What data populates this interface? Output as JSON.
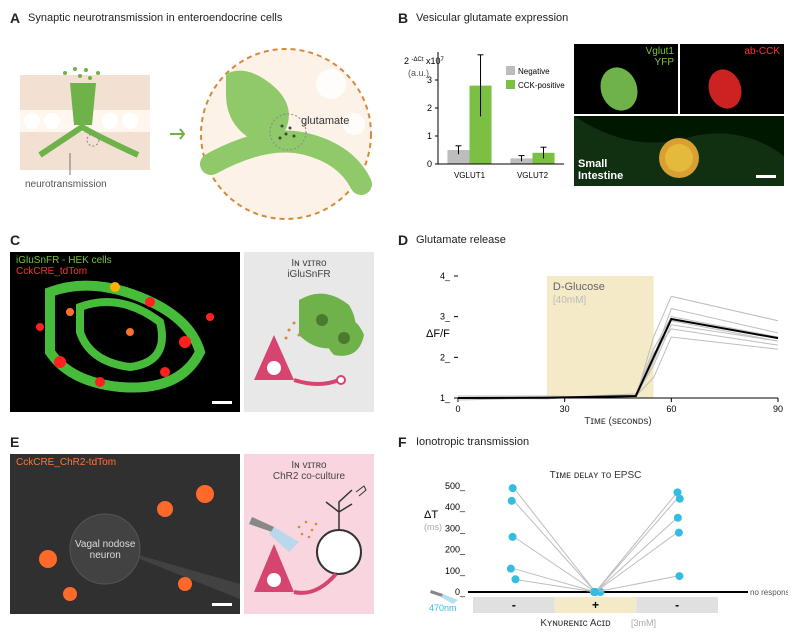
{
  "panelA": {
    "label": "A",
    "title": "Synaptic neurotransmission in enteroendocrine cells",
    "caption_neurotransmission": "neurotransmission",
    "caption_glutamate": "glutamate"
  },
  "panelB": {
    "label": "B",
    "title": "Vesicular glutamate expression",
    "chart": {
      "type": "bar",
      "categories": [
        "VGLUT1",
        "VGLUT2"
      ],
      "series": [
        {
          "name": "Negative",
          "color": "#bdbdbd",
          "values": [
            0.5,
            0.2
          ],
          "errors": [
            0.15,
            0.1
          ]
        },
        {
          "name": "CCK-positive",
          "color": "#7bc043",
          "values": [
            2.8,
            0.4
          ],
          "errors": [
            1.1,
            0.2
          ]
        }
      ],
      "ylabel_html": "2 <sup>-ΔCt</sup> x10<sup>7</sup>",
      "yunits": "(a.u.)",
      "ylim": [
        0,
        3
      ],
      "ytick_step": 1,
      "bar_width": 0.35,
      "label_fontsize": 9,
      "background_color": "#ffffff"
    },
    "img1_label": "Vglut1\nYFP",
    "img1_label_color": "#7bc043",
    "img2_label": "ab-CCK",
    "img2_label_color": "#ff3333",
    "img3_label": "Small\nIntestine",
    "img3_label_color": "#ffffff"
  },
  "panelC": {
    "label": "C",
    "img_top_label1": "iGluSnFR - HEK cells",
    "img_top_label1_color": "#7bc043",
    "img_top_label2": "CckCRE_tdTom",
    "img_top_label2_color": "#ff3333",
    "diagram_title": "Iɴ ᴠɪᴛʀᴏ",
    "diagram_subtitle": "iGluSnFR"
  },
  "panelD": {
    "label": "D",
    "title": "Glutamate release",
    "chart": {
      "type": "line",
      "xlabel": "Tɪᴍᴇ (sᴇᴄᴏɴᴅs)",
      "ylabel": "ΔF/F",
      "xlim": [
        0,
        90
      ],
      "xtick_step": 30,
      "ylim": [
        1,
        4
      ],
      "ytick_step": 1,
      "stimulus_label": "D-Glucose",
      "stimulus_conc": "[40mM]",
      "stimulus_start": 25,
      "stimulus_end": 55,
      "stimulus_color": "#f5eac8",
      "trace_color": "#bdbdbd",
      "mean_color": "#000000",
      "n_traces": 7,
      "traces": [
        [
          [
            0,
            1.0
          ],
          [
            25,
            1.0
          ],
          [
            50,
            1.05
          ],
          [
            55,
            1.8
          ],
          [
            60,
            2.8
          ],
          [
            90,
            2.4
          ]
        ],
        [
          [
            0,
            1.0
          ],
          [
            25,
            1.0
          ],
          [
            50,
            1.1
          ],
          [
            55,
            2.0
          ],
          [
            60,
            3.2
          ],
          [
            90,
            2.6
          ]
        ],
        [
          [
            0,
            1.05
          ],
          [
            25,
            1.05
          ],
          [
            50,
            1.0
          ],
          [
            55,
            2.5
          ],
          [
            60,
            3.5
          ],
          [
            90,
            2.9
          ]
        ],
        [
          [
            0,
            0.95
          ],
          [
            25,
            1.0
          ],
          [
            50,
            1.05
          ],
          [
            55,
            1.5
          ],
          [
            60,
            2.5
          ],
          [
            90,
            2.2
          ]
        ],
        [
          [
            0,
            1.0
          ],
          [
            25,
            0.98
          ],
          [
            50,
            1.1
          ],
          [
            55,
            2.2
          ],
          [
            60,
            3.0
          ],
          [
            90,
            2.5
          ]
        ],
        [
          [
            0,
            1.0
          ],
          [
            25,
            1.0
          ],
          [
            50,
            1.0
          ],
          [
            55,
            1.9
          ],
          [
            60,
            2.9
          ],
          [
            90,
            2.4
          ]
        ],
        [
          [
            0,
            1.0
          ],
          [
            25,
            1.02
          ],
          [
            50,
            1.05
          ],
          [
            55,
            2.1
          ],
          [
            60,
            2.7
          ],
          [
            90,
            2.3
          ]
        ]
      ],
      "label_fontsize": 10
    }
  },
  "panelE": {
    "label": "E",
    "img_top_label": "CckCRE_ChR2-tdTom",
    "img_top_label_color": "#ff7733",
    "img_center_label": "Vagal nodose\nneuron",
    "diagram_title": "Iɴ ᴠɪᴛʀᴏ",
    "diagram_subtitle": "ChR2 co-culture"
  },
  "panelF": {
    "label": "F",
    "title": "Ionotropic transmission",
    "chart": {
      "type": "scatter-paired",
      "ylabel": "ΔT",
      "yunits": "(ms)",
      "ylim": [
        0,
        500
      ],
      "ytick_step": 100,
      "title_right": "Tɪᴍᴇ ᴅᴇʟᴀʏ ᴛᴏ EPSC",
      "conditions": [
        "-",
        "+",
        "-"
      ],
      "x_positions": [
        0,
        1,
        2
      ],
      "points": [
        {
          "pre": 430,
          "during": 0,
          "post": 470
        },
        {
          "pre": 490,
          "during": 0,
          "post": 440
        },
        {
          "pre": 260,
          "during": 0,
          "post": 350
        },
        {
          "pre": 110,
          "during": 0,
          "post": 280
        },
        {
          "pre": 60,
          "during": 0,
          "post": 75
        }
      ],
      "marker_color": "#33bde0",
      "line_color": "#bdbdbd",
      "no_response_label": "no response",
      "stim_label": "470nm",
      "stim_color": "#33bde0",
      "drug_label": "Kʏɴᴜʀᴇɴɪᴄ Aᴄɪᴅ",
      "drug_conc": "[3mM]",
      "box_colors": [
        "#e0e0e0",
        "#f5eac8",
        "#e0e0e0"
      ],
      "label_fontsize": 10
    }
  }
}
